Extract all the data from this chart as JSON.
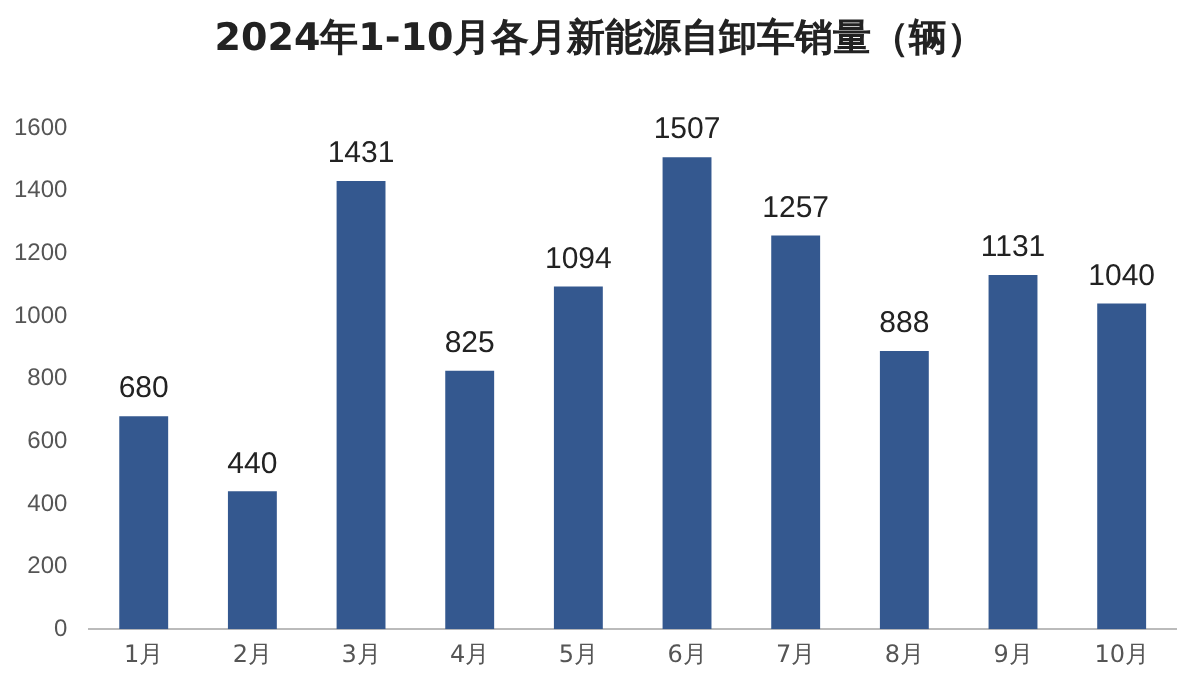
{
  "chart_data": {
    "type": "bar",
    "title": "2024年1-10月各月新能源自卸车销量（辆）",
    "categories": [
      "1月",
      "2月",
      "3月",
      "4月",
      "5月",
      "6月",
      "7月",
      "8月",
      "9月",
      "10月"
    ],
    "values": [
      680,
      440,
      1431,
      825,
      1094,
      1507,
      1257,
      888,
      1131,
      1040
    ],
    "color": "#34588f",
    "ylim": [
      0,
      1600
    ],
    "yticks": [
      0,
      200,
      400,
      600,
      800,
      1000,
      1200,
      1400,
      1600
    ],
    "grid": false,
    "data_labels": true
  }
}
